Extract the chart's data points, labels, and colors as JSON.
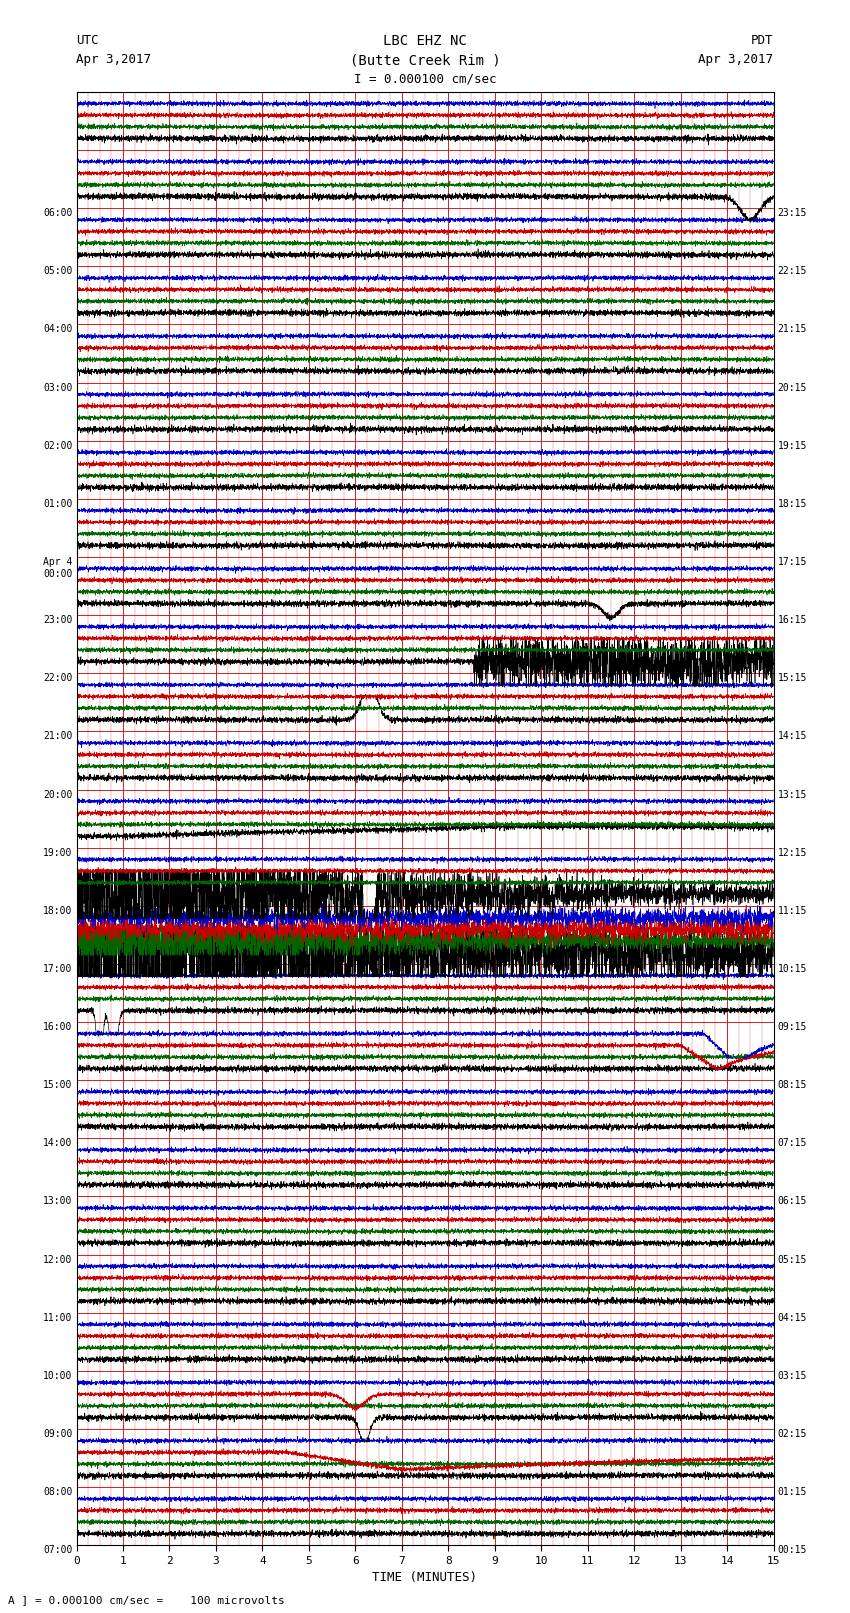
{
  "title_line1": "LBC EHZ NC",
  "title_line2": "(Butte Creek Rim )",
  "title_line3": "I = 0.000100 cm/sec",
  "left_label_top": "UTC",
  "left_label_date": "Apr 3,2017",
  "right_label_top": "PDT",
  "right_label_date": "Apr 3,2017",
  "xlabel": "TIME (MINUTES)",
  "footer": "A ] = 0.000100 cm/sec =    100 microvolts",
  "utc_times": [
    "07:00",
    "08:00",
    "09:00",
    "10:00",
    "11:00",
    "12:00",
    "13:00",
    "14:00",
    "15:00",
    "16:00",
    "17:00",
    "18:00",
    "19:00",
    "20:00",
    "21:00",
    "22:00",
    "23:00",
    "Apr 4\n00:00",
    "01:00",
    "02:00",
    "03:00",
    "04:00",
    "05:00",
    "06:00",
    ""
  ],
  "pdt_times": [
    "00:15",
    "01:15",
    "02:15",
    "03:15",
    "04:15",
    "05:15",
    "06:15",
    "07:15",
    "08:15",
    "09:15",
    "10:15",
    "11:15",
    "12:15",
    "13:15",
    "14:15",
    "15:15",
    "16:15",
    "17:15",
    "18:15",
    "19:15",
    "20:15",
    "21:15",
    "22:15",
    "23:15",
    ""
  ],
  "n_rows": 25,
  "n_minutes": 15,
  "bg_color": "#ffffff",
  "grid_color": "#cc0000",
  "fig_width": 8.5,
  "fig_height": 16.13,
  "dpi": 100
}
